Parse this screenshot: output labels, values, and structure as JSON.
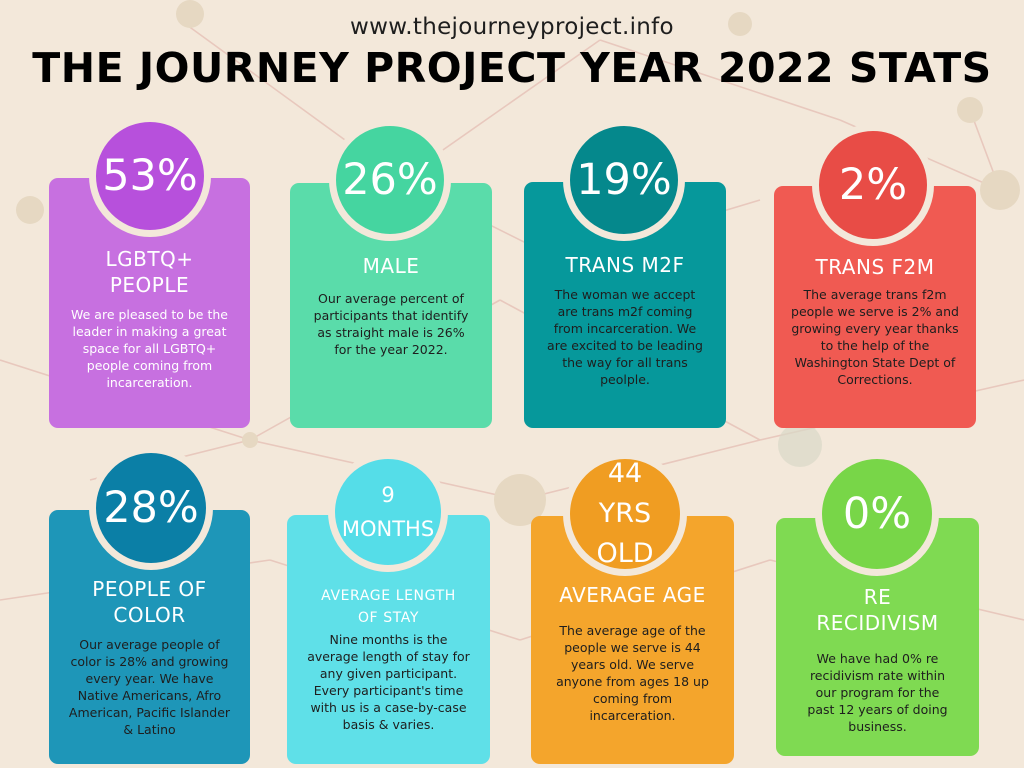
{
  "header": {
    "url": "www.thejourneyproject.info",
    "title": "THE JOURNEY PROJECT YEAR 2022 STATS"
  },
  "cards": [
    {
      "stat": "53%",
      "heading": "LGBTQ+ PEOPLE",
      "description": "We are pleased to be the leader in making a great space for all LGBTQ+ people coming from incarceration.",
      "card_color": "#c770e0",
      "circle_color": "#b750dc",
      "text_color": "#ffffff"
    },
    {
      "stat": "26%",
      "heading": "MALE",
      "description": "Our average percent of participants that identify as straight male is 26% for the year 2022.",
      "card_color": "#5adcaa",
      "circle_color": "#45d5a0",
      "text_color": "#1e1e1e"
    },
    {
      "stat": "19%",
      "heading": "TRANS M2F",
      "description": "The woman we accept are trans m2f coming from incarceration.  We are excited to be leading the way for all trans peolple.",
      "card_color": "#06989b",
      "circle_color": "#05888c",
      "text_color": "#1e1e1e"
    },
    {
      "stat": "2%",
      "heading": "TRANS F2M",
      "description": "The average trans f2m people we serve is 2% and growing every year thanks to the help of the Washington State Dept of Corrections.",
      "card_color": "#f05a52",
      "circle_color": "#e84c46",
      "text_color": "#1e1e1e"
    },
    {
      "stat": "28%",
      "heading": "PEOPLE OF COLOR",
      "description": "Our average people of color is 28% and growing every year.  We have Native Americans, Afro American, Pacific Islander & Latino",
      "card_color": "#1e96b8",
      "circle_color": "#0b7fa6",
      "text_color": "#1e1e1e"
    },
    {
      "stat": "9 MONTHS",
      "heading": "AVERAGE LENGTH OF STAY",
      "description": "Nine months is the average length of stay for any given participant. Every participant's time with us is a case-by-case basis & varies.",
      "card_color": "#5fe0e8",
      "circle_color": "#55dde8",
      "text_color": "#1e1e1e"
    },
    {
      "stat": "44 YRS OLD",
      "heading": "AVERAGE AGE",
      "description": "The average age of the people we serve is 44 years old.  We serve anyone from ages 18 up coming from incarceration.",
      "card_color": "#f4a52c",
      "circle_color": "#f09d22",
      "text_color": "#1e1e1e"
    },
    {
      "stat": "0%",
      "heading": "RE RECIDIVISM",
      "description": "We have had 0% re recidivism rate within our program for the past 12 years of doing business.",
      "card_color": "#7fda52",
      "circle_color": "#78d648",
      "text_color": "#1e1e1e"
    }
  ]
}
